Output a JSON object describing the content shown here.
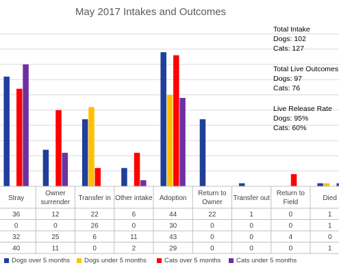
{
  "chart_data": {
    "type": "bar",
    "title": "May 2017 Intakes and Outcomes",
    "categories": [
      "Stray",
      "Owner surrender",
      "Transfer in",
      "Other intake",
      "Adoption",
      "Return to Owner",
      "Transfer out",
      "Return to Field",
      "Died"
    ],
    "category_lines": [
      [
        "Stray"
      ],
      [
        "Owner",
        "surrender"
      ],
      [
        "Transfer in"
      ],
      [
        "Other intake"
      ],
      [
        "Adoption"
      ],
      [
        "Return to",
        "Owner"
      ],
      [
        "Transfer out"
      ],
      [
        "Return to",
        "Field"
      ],
      [
        "Died"
      ]
    ],
    "series": [
      {
        "name": "Dogs over 5 months",
        "color": "#1f3f9a",
        "values": [
          36,
          12,
          22,
          6,
          44,
          22,
          1,
          0,
          1
        ]
      },
      {
        "name": "Dogs under 5 months",
        "color": "#ffc000",
        "values": [
          0,
          0,
          26,
          0,
          30,
          0,
          0,
          0,
          1
        ]
      },
      {
        "name": "Cats over 5 months",
        "color": "#ff0000",
        "values": [
          32,
          25,
          6,
          11,
          43,
          0,
          0,
          4,
          0
        ]
      },
      {
        "name": "Cats under 5 months",
        "color": "#7030a0",
        "values": [
          40,
          11,
          0,
          2,
          29,
          0,
          0,
          0,
          1
        ]
      }
    ],
    "ylim": [
      0,
      50
    ],
    "grid": true,
    "data_table": true,
    "legend_position": "bottom"
  },
  "stats": {
    "intake": {
      "heading": "Total Intake",
      "dogs": "Dogs: 102",
      "cats": "Cats: 127"
    },
    "live_outcomes": {
      "heading": "Total Live Outcomes",
      "dogs": "Dogs: 97",
      "cats": "Cats: 76"
    },
    "release_rate": {
      "heading": "Live Release Rate",
      "dogs": "Dogs: 95%",
      "cats": "Cats: 60%"
    }
  }
}
